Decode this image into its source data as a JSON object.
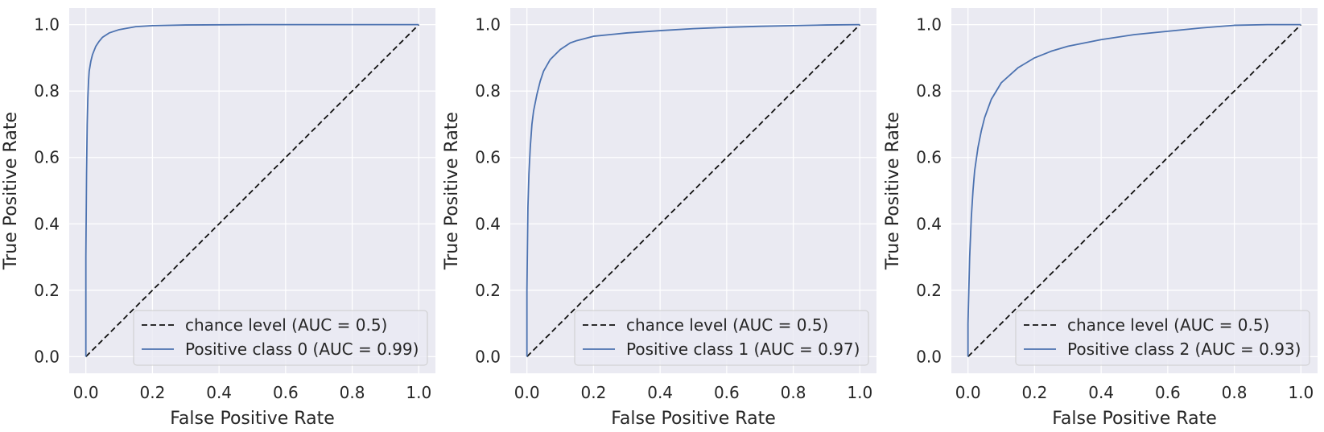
{
  "chart_data": [
    {
      "type": "line",
      "xlabel": "False Positive Rate",
      "ylabel": "True Positive Rate",
      "xlim": [
        -0.05,
        1.05
      ],
      "ylim": [
        -0.05,
        1.05
      ],
      "xticks": [
        "0.0",
        "0.2",
        "0.4",
        "0.6",
        "0.8",
        "1.0"
      ],
      "yticks": [
        "0.0",
        "0.2",
        "0.4",
        "0.6",
        "0.8",
        "1.0"
      ],
      "grid": true,
      "legend_position": "lower-right",
      "series": [
        {
          "name": "chance level (AUC = 0.5)",
          "style": "dashed",
          "color": "#111111",
          "x": [
            0,
            1
          ],
          "y": [
            0,
            1
          ]
        },
        {
          "name": "Positive class 0 (AUC = 0.99)",
          "style": "solid",
          "color": "#4c72b0",
          "x": [
            0,
            0.0,
            0.002,
            0.004,
            0.006,
            0.008,
            0.01,
            0.015,
            0.02,
            0.03,
            0.04,
            0.05,
            0.07,
            0.1,
            0.15,
            0.2,
            0.3,
            0.5,
            1.0
          ],
          "y": [
            0,
            0.3,
            0.55,
            0.7,
            0.78,
            0.83,
            0.86,
            0.89,
            0.91,
            0.935,
            0.95,
            0.962,
            0.975,
            0.985,
            0.994,
            0.997,
            0.999,
            1.0,
            1.0
          ]
        }
      ]
    },
    {
      "type": "line",
      "xlabel": "False Positive Rate",
      "ylabel": "True Positive Rate",
      "xlim": [
        -0.05,
        1.05
      ],
      "ylim": [
        -0.05,
        1.05
      ],
      "xticks": [
        "0.0",
        "0.2",
        "0.4",
        "0.6",
        "0.8",
        "1.0"
      ],
      "yticks": [
        "0.0",
        "0.2",
        "0.4",
        "0.6",
        "0.8",
        "1.0"
      ],
      "grid": true,
      "legend_position": "lower-right",
      "series": [
        {
          "name": "chance level (AUC = 0.5)",
          "style": "dashed",
          "color": "#111111",
          "x": [
            0,
            1
          ],
          "y": [
            0,
            1
          ]
        },
        {
          "name": "Positive class 1 (AUC = 0.97)",
          "style": "solid",
          "color": "#4c72b0",
          "x": [
            0,
            0.0,
            0.003,
            0.006,
            0.01,
            0.015,
            0.02,
            0.03,
            0.04,
            0.05,
            0.07,
            0.1,
            0.13,
            0.15,
            0.2,
            0.3,
            0.4,
            0.5,
            0.6,
            0.7,
            0.8,
            0.9,
            1.0
          ],
          "y": [
            0,
            0.2,
            0.45,
            0.55,
            0.63,
            0.7,
            0.74,
            0.79,
            0.83,
            0.86,
            0.895,
            0.925,
            0.945,
            0.952,
            0.965,
            0.975,
            0.982,
            0.988,
            0.992,
            0.995,
            0.997,
            0.999,
            1.0
          ]
        }
      ]
    },
    {
      "type": "line",
      "xlabel": "False Positive Rate",
      "ylabel": "True Positive Rate",
      "xlim": [
        -0.05,
        1.05
      ],
      "ylim": [
        -0.05,
        1.05
      ],
      "xticks": [
        "0.0",
        "0.2",
        "0.4",
        "0.6",
        "0.8",
        "1.0"
      ],
      "yticks": [
        "0.0",
        "0.2",
        "0.4",
        "0.6",
        "0.8",
        "1.0"
      ],
      "grid": true,
      "legend_position": "lower-right",
      "series": [
        {
          "name": "chance level (AUC = 0.5)",
          "style": "dashed",
          "color": "#111111",
          "x": [
            0,
            1
          ],
          "y": [
            0,
            1
          ]
        },
        {
          "name": "Positive class 2 (AUC = 0.93)",
          "style": "solid",
          "color": "#4c72b0",
          "x": [
            0,
            0.0,
            0.005,
            0.01,
            0.015,
            0.02,
            0.03,
            0.04,
            0.05,
            0.07,
            0.1,
            0.15,
            0.2,
            0.25,
            0.3,
            0.4,
            0.5,
            0.6,
            0.7,
            0.8,
            0.9,
            1.0
          ],
          "y": [
            0,
            0.1,
            0.3,
            0.42,
            0.5,
            0.56,
            0.63,
            0.68,
            0.72,
            0.775,
            0.825,
            0.87,
            0.9,
            0.92,
            0.935,
            0.955,
            0.97,
            0.98,
            0.99,
            0.998,
            1.0,
            1.0
          ]
        }
      ]
    }
  ],
  "style": {
    "plot_background": "#eaeaf2",
    "grid_color": "#ffffff",
    "text_color": "#262626",
    "legend_background": "#eaeaf2",
    "legend_border": "#cccccc"
  }
}
